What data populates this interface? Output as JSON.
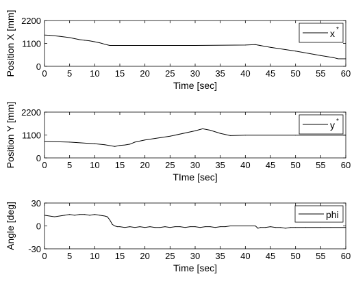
{
  "chart_data": [
    {
      "type": "line",
      "xlabel": "Time [sec]",
      "ylabel": "Position X [mm]",
      "xlim": [
        0,
        60
      ],
      "ylim": [
        0,
        2200
      ],
      "xticks": [
        0,
        5,
        10,
        15,
        20,
        25,
        30,
        35,
        40,
        45,
        50,
        55,
        60
      ],
      "yticks": [
        0,
        1100,
        2200
      ],
      "grid": false,
      "legend": {
        "placement": "top-right",
        "label": "x",
        "superscript": "*"
      },
      "series": [
        {
          "name": "x*",
          "x": [
            0,
            1,
            3,
            5,
            6,
            7,
            8,
            9,
            10,
            11,
            12,
            12.5,
            13,
            20,
            30,
            40,
            42,
            45,
            50,
            55,
            57.5,
            58.5,
            60
          ],
          "y": [
            1500,
            1490,
            1440,
            1380,
            1330,
            1280,
            1250,
            1220,
            1180,
            1130,
            1060,
            1030,
            1000,
            1000,
            1000,
            1020,
            1040,
            910,
            730,
            520,
            420,
            360,
            360
          ]
        }
      ]
    },
    {
      "type": "line",
      "xlabel": "TIme [sec]",
      "ylabel": "Position Y [mm]",
      "xlim": [
        0,
        60
      ],
      "ylim": [
        0,
        2200
      ],
      "xticks": [
        0,
        5,
        10,
        15,
        20,
        25,
        30,
        35,
        40,
        45,
        50,
        55,
        60
      ],
      "yticks": [
        0,
        1100,
        2200
      ],
      "grid": false,
      "legend": {
        "placement": "top-right",
        "label": "y",
        "superscript": "*"
      },
      "series": [
        {
          "name": "y*",
          "x": [
            0,
            5,
            10,
            12,
            14,
            15,
            16,
            17,
            18,
            20,
            25,
            30,
            31.5,
            33,
            35,
            37,
            40,
            50,
            60
          ],
          "y": [
            790,
            760,
            680,
            630,
            550,
            600,
            620,
            660,
            760,
            860,
            1040,
            1300,
            1400,
            1330,
            1180,
            1070,
            1090,
            1090,
            1090
          ]
        }
      ]
    },
    {
      "type": "line",
      "xlabel": "Time [sec]",
      "ylabel": "Angle [deg]",
      "xlim": [
        0,
        60
      ],
      "ylim": [
        -30,
        30
      ],
      "xticks": [
        0,
        5,
        10,
        15,
        20,
        25,
        30,
        35,
        40,
        45,
        50,
        55,
        60
      ],
      "yticks": [
        -30,
        0,
        30
      ],
      "grid": false,
      "legend": {
        "placement": "top-right",
        "label": "phi",
        "superscript": ""
      },
      "series": [
        {
          "name": "phi",
          "x": [
            0,
            1,
            2,
            3,
            4,
            5,
            6,
            7,
            8,
            9,
            10,
            11,
            12,
            12.5,
            13,
            13.5,
            14,
            14.5,
            15,
            16,
            17,
            18,
            19,
            20,
            21,
            22,
            23,
            24,
            25,
            26,
            27,
            28,
            29,
            30,
            31,
            32,
            33,
            34,
            35,
            36,
            37,
            38,
            39,
            40,
            41,
            42,
            42.5,
            43,
            44,
            45,
            46,
            47,
            48,
            49,
            50,
            52,
            55,
            57,
            60
          ],
          "y": [
            14,
            13,
            12,
            13,
            14,
            15,
            14,
            15,
            15,
            14,
            15,
            14,
            13,
            12,
            8,
            2,
            0,
            -1,
            -1,
            -2,
            -1,
            -2,
            -1,
            -2,
            -1,
            -2,
            -2,
            -1,
            -2,
            -1,
            -1,
            -2,
            -1,
            -1,
            -2,
            -1,
            -1,
            -2,
            -1,
            -1,
            0,
            0,
            0,
            0,
            0,
            0,
            -3,
            -2,
            -2,
            -1,
            -2,
            -2,
            -3,
            -2,
            -2,
            -2,
            -2,
            -2,
            -2
          ]
        }
      ]
    }
  ]
}
